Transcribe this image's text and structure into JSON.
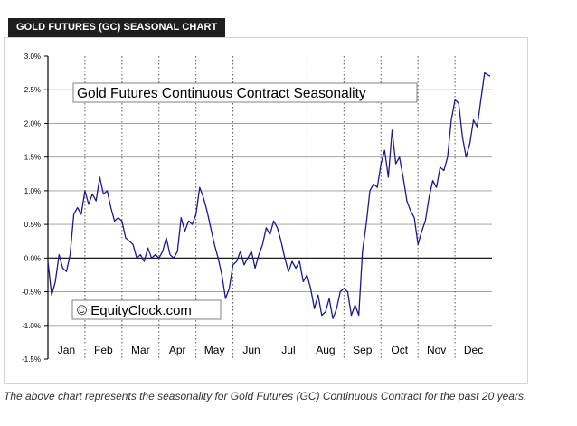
{
  "header": {
    "title": "GOLD FUTURES (GC) SEASONAL CHART"
  },
  "caption": "The above chart represents the seasonality for Gold Futures (GC) Continuous Contract for the past 20 years.",
  "chart_data": {
    "type": "line",
    "title": "Gold Futures Continuous Contract Seasonality",
    "watermark": "© EquityClock.com",
    "xlabel": "",
    "ylabel": "",
    "months": [
      "Jan",
      "Feb",
      "Mar",
      "Apr",
      "May",
      "Jun",
      "Jul",
      "Aug",
      "Sep",
      "Oct",
      "Nov",
      "Dec"
    ],
    "y_ticks": [
      "-1.5%",
      "-1.0%",
      "-0.5%",
      "0.0%",
      "0.5%",
      "1.0%",
      "1.5%",
      "2.0%",
      "2.5%",
      "3.0%"
    ],
    "ylim": [
      -1.5,
      3.0
    ],
    "grid": true,
    "line_color": "#1a1a8c",
    "series": [
      {
        "x_month": [
          0.0,
          0.1,
          0.2,
          0.3,
          0.4,
          0.5,
          0.6,
          0.7,
          0.8,
          0.9,
          1.0,
          1.1,
          1.2,
          1.3,
          1.4,
          1.5,
          1.6,
          1.7,
          1.8,
          1.9,
          2.0,
          2.1,
          2.2,
          2.3,
          2.4,
          2.5,
          2.6,
          2.7,
          2.8,
          2.9,
          3.0,
          3.1,
          3.2,
          3.3,
          3.4,
          3.5,
          3.6,
          3.7,
          3.8,
          3.9,
          4.0,
          4.1,
          4.2,
          4.3,
          4.4,
          4.5,
          4.6,
          4.7,
          4.8,
          4.9,
          5.0,
          5.1,
          5.2,
          5.3,
          5.4,
          5.5,
          5.6,
          5.7,
          5.8,
          5.9,
          6.0,
          6.1,
          6.2,
          6.3,
          6.4,
          6.5,
          6.6,
          6.7,
          6.8,
          6.9,
          7.0,
          7.1,
          7.2,
          7.3,
          7.4,
          7.5,
          7.6,
          7.7,
          7.8,
          7.9,
          8.0,
          8.1,
          8.2,
          8.3,
          8.4,
          8.5,
          8.6,
          8.7,
          8.8,
          8.9,
          9.0,
          9.1,
          9.2,
          9.3,
          9.4,
          9.5,
          9.6,
          9.7,
          9.8,
          9.9,
          10.0,
          10.1,
          10.2,
          10.3,
          10.4,
          10.5,
          10.6,
          10.7,
          10.8,
          10.9,
          11.0,
          11.1,
          11.2,
          11.3,
          11.4,
          11.5,
          11.6,
          11.7,
          11.8,
          11.95
        ],
        "values": [
          -0.05,
          -0.55,
          -0.35,
          0.05,
          -0.15,
          -0.2,
          0.05,
          0.65,
          0.75,
          0.65,
          1.0,
          0.8,
          0.95,
          0.85,
          1.2,
          0.95,
          1.0,
          0.75,
          0.55,
          0.6,
          0.55,
          0.3,
          0.25,
          0.2,
          0.0,
          0.05,
          -0.05,
          0.15,
          0.0,
          0.05,
          0.0,
          0.1,
          0.3,
          0.05,
          0.0,
          0.1,
          0.6,
          0.4,
          0.55,
          0.5,
          0.65,
          1.05,
          0.9,
          0.7,
          0.45,
          0.2,
          0.0,
          -0.25,
          -0.6,
          -0.45,
          -0.1,
          -0.05,
          0.1,
          -0.1,
          0.0,
          0.1,
          -0.15,
          0.05,
          0.2,
          0.45,
          0.35,
          0.55,
          0.45,
          0.25,
          0.0,
          -0.2,
          -0.05,
          -0.15,
          -0.05,
          -0.35,
          -0.25,
          -0.45,
          -0.75,
          -0.55,
          -0.85,
          -0.8,
          -0.6,
          -0.9,
          -0.75,
          -0.5,
          -0.45,
          -0.5,
          -0.85,
          -0.7,
          -0.85,
          0.1,
          0.5,
          1.0,
          1.1,
          1.05,
          1.4,
          1.6,
          1.2,
          1.9,
          1.4,
          1.5,
          1.2,
          0.85,
          0.7,
          0.6,
          0.2,
          0.4,
          0.55,
          0.9,
          1.15,
          1.05,
          1.35,
          1.3,
          1.5,
          2.05,
          2.35,
          2.3,
          1.8,
          1.5,
          1.7,
          2.05,
          1.95,
          2.35,
          2.75,
          2.7
        ]
      }
    ]
  }
}
